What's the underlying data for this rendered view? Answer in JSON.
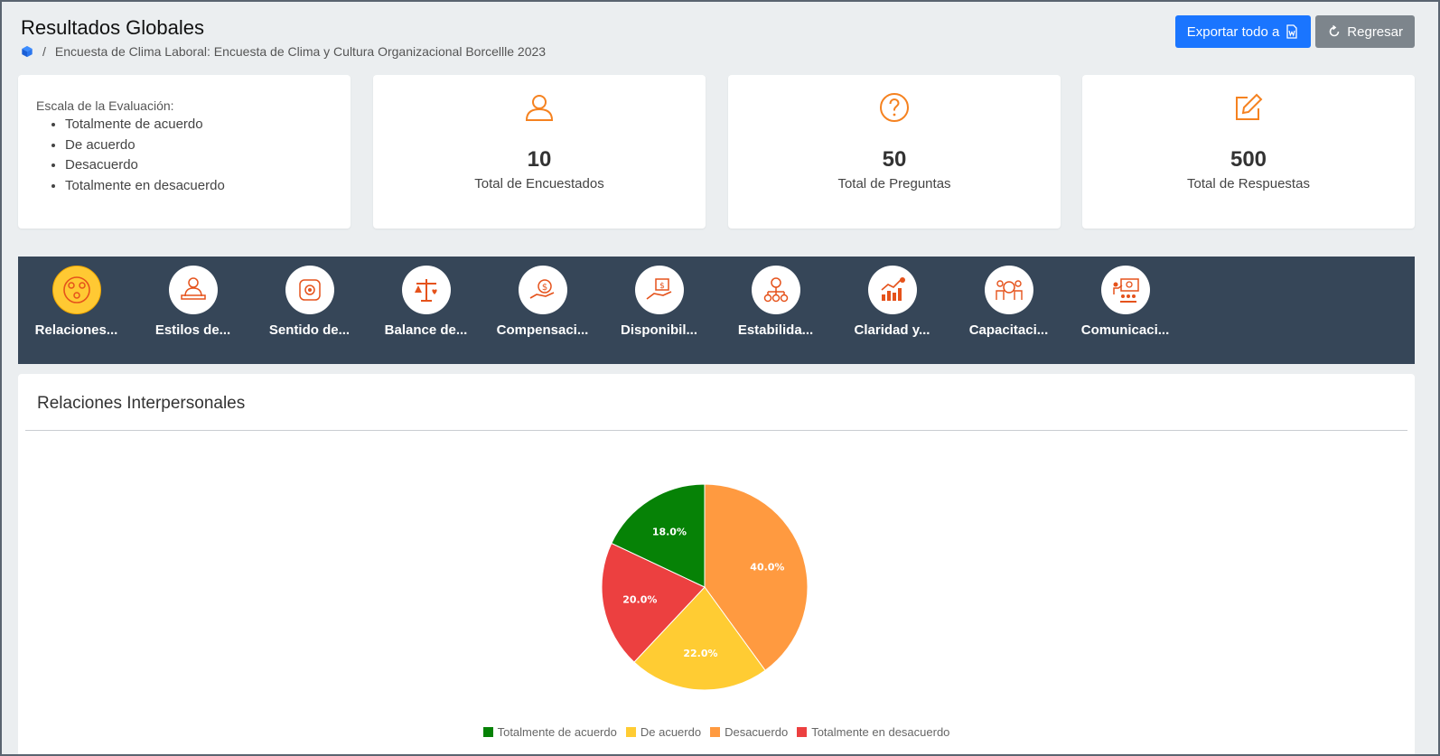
{
  "header": {
    "title": "Resultados Globales",
    "breadcrumb_separator": "/",
    "breadcrumb_text": "Encuesta de Clima Laboral: Encuesta de Clima y Cultura Organizacional Borcellle 2023",
    "export_label": "Exportar todo a",
    "back_label": "Regresar"
  },
  "scale": {
    "title": "Escala de la Evaluación:",
    "items": [
      "Totalmente de acuerdo",
      "De acuerdo",
      "Desacuerdo",
      "Totalmente en desacuerdo"
    ]
  },
  "stats": [
    {
      "value": "10",
      "label": "Total de Encuestados",
      "icon": "user-icon"
    },
    {
      "value": "50",
      "label": "Total de Preguntas",
      "icon": "question-circle-icon"
    },
    {
      "value": "500",
      "label": "Total de Respuestas",
      "icon": "edit-icon"
    }
  ],
  "categories": [
    {
      "label": "Relaciones...",
      "icon": "people-network-icon",
      "active": true
    },
    {
      "label": "Estilos de...",
      "icon": "leader-desk-icon",
      "active": false
    },
    {
      "label": "Sentido de...",
      "icon": "team-hands-icon",
      "active": false
    },
    {
      "label": "Balance de...",
      "icon": "scale-balance-icon",
      "active": false
    },
    {
      "label": "Compensaci...",
      "icon": "hand-money-icon",
      "active": false
    },
    {
      "label": "Disponibil...",
      "icon": "hand-money-box-icon",
      "active": false
    },
    {
      "label": "Estabilida...",
      "icon": "gear-money-tree-icon",
      "active": false
    },
    {
      "label": "Claridad y...",
      "icon": "growth-chart-icon",
      "active": false
    },
    {
      "label": "Capacitaci...",
      "icon": "training-group-icon",
      "active": false
    },
    {
      "label": "Comunicaci...",
      "icon": "presentation-icon",
      "active": false
    }
  ],
  "panel": {
    "title": "Relaciones Interpersonales"
  },
  "chart_data": {
    "type": "pie",
    "title": "",
    "slices": [
      {
        "label": "Desacuerdo",
        "value": 40.0,
        "display": "40.0%",
        "color": "#ff9a40"
      },
      {
        "label": "De acuerdo",
        "value": 22.0,
        "display": "22.0%",
        "color": "#ffcc33"
      },
      {
        "label": "Totalmente en desacuerdo",
        "value": 20.0,
        "display": "20.0%",
        "color": "#ec4040"
      },
      {
        "label": "Totalmente de acuerdo",
        "value": 18.0,
        "display": "18.0%",
        "color": "#068206"
      }
    ],
    "legend_order": [
      "Totalmente de acuerdo",
      "De acuerdo",
      "Desacuerdo",
      "Totalmente en desacuerdo"
    ],
    "legend_position": "bottom"
  },
  "colors": {
    "accent_orange": "#f58220",
    "primary_blue": "#1a75ff",
    "category_bar": "#364658",
    "active_category": "#ffc933"
  }
}
